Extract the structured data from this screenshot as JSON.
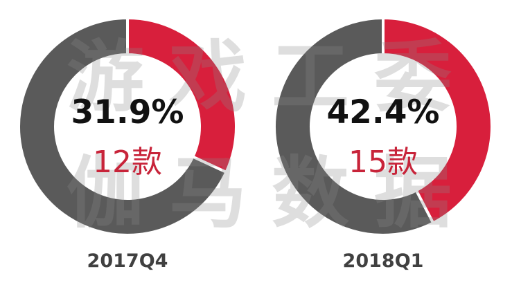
{
  "watermark": {
    "line1": [
      "游",
      "戏",
      "工",
      "委"
    ],
    "line2": [
      "伽",
      "马",
      "数",
      "据"
    ]
  },
  "colors": {
    "highlight": "#d81f3c",
    "rest": "#5a5a5a",
    "separator": "#ffffff",
    "percent_text": "#111111",
    "count_text": "#c8243a",
    "period_text": "#404040"
  },
  "chart_data": [
    {
      "type": "pie",
      "variant": "donut",
      "label": "2017Q4",
      "center_value": "31.9%",
      "center_count": "12款",
      "slices": [
        {
          "value": 31.9
        },
        {
          "value": 68.1
        }
      ]
    },
    {
      "type": "pie",
      "variant": "donut",
      "label": "2018Q1",
      "center_value": "42.4%",
      "center_count": "15款",
      "slices": [
        {
          "value": 42.4
        },
        {
          "value": 57.6
        }
      ]
    }
  ]
}
